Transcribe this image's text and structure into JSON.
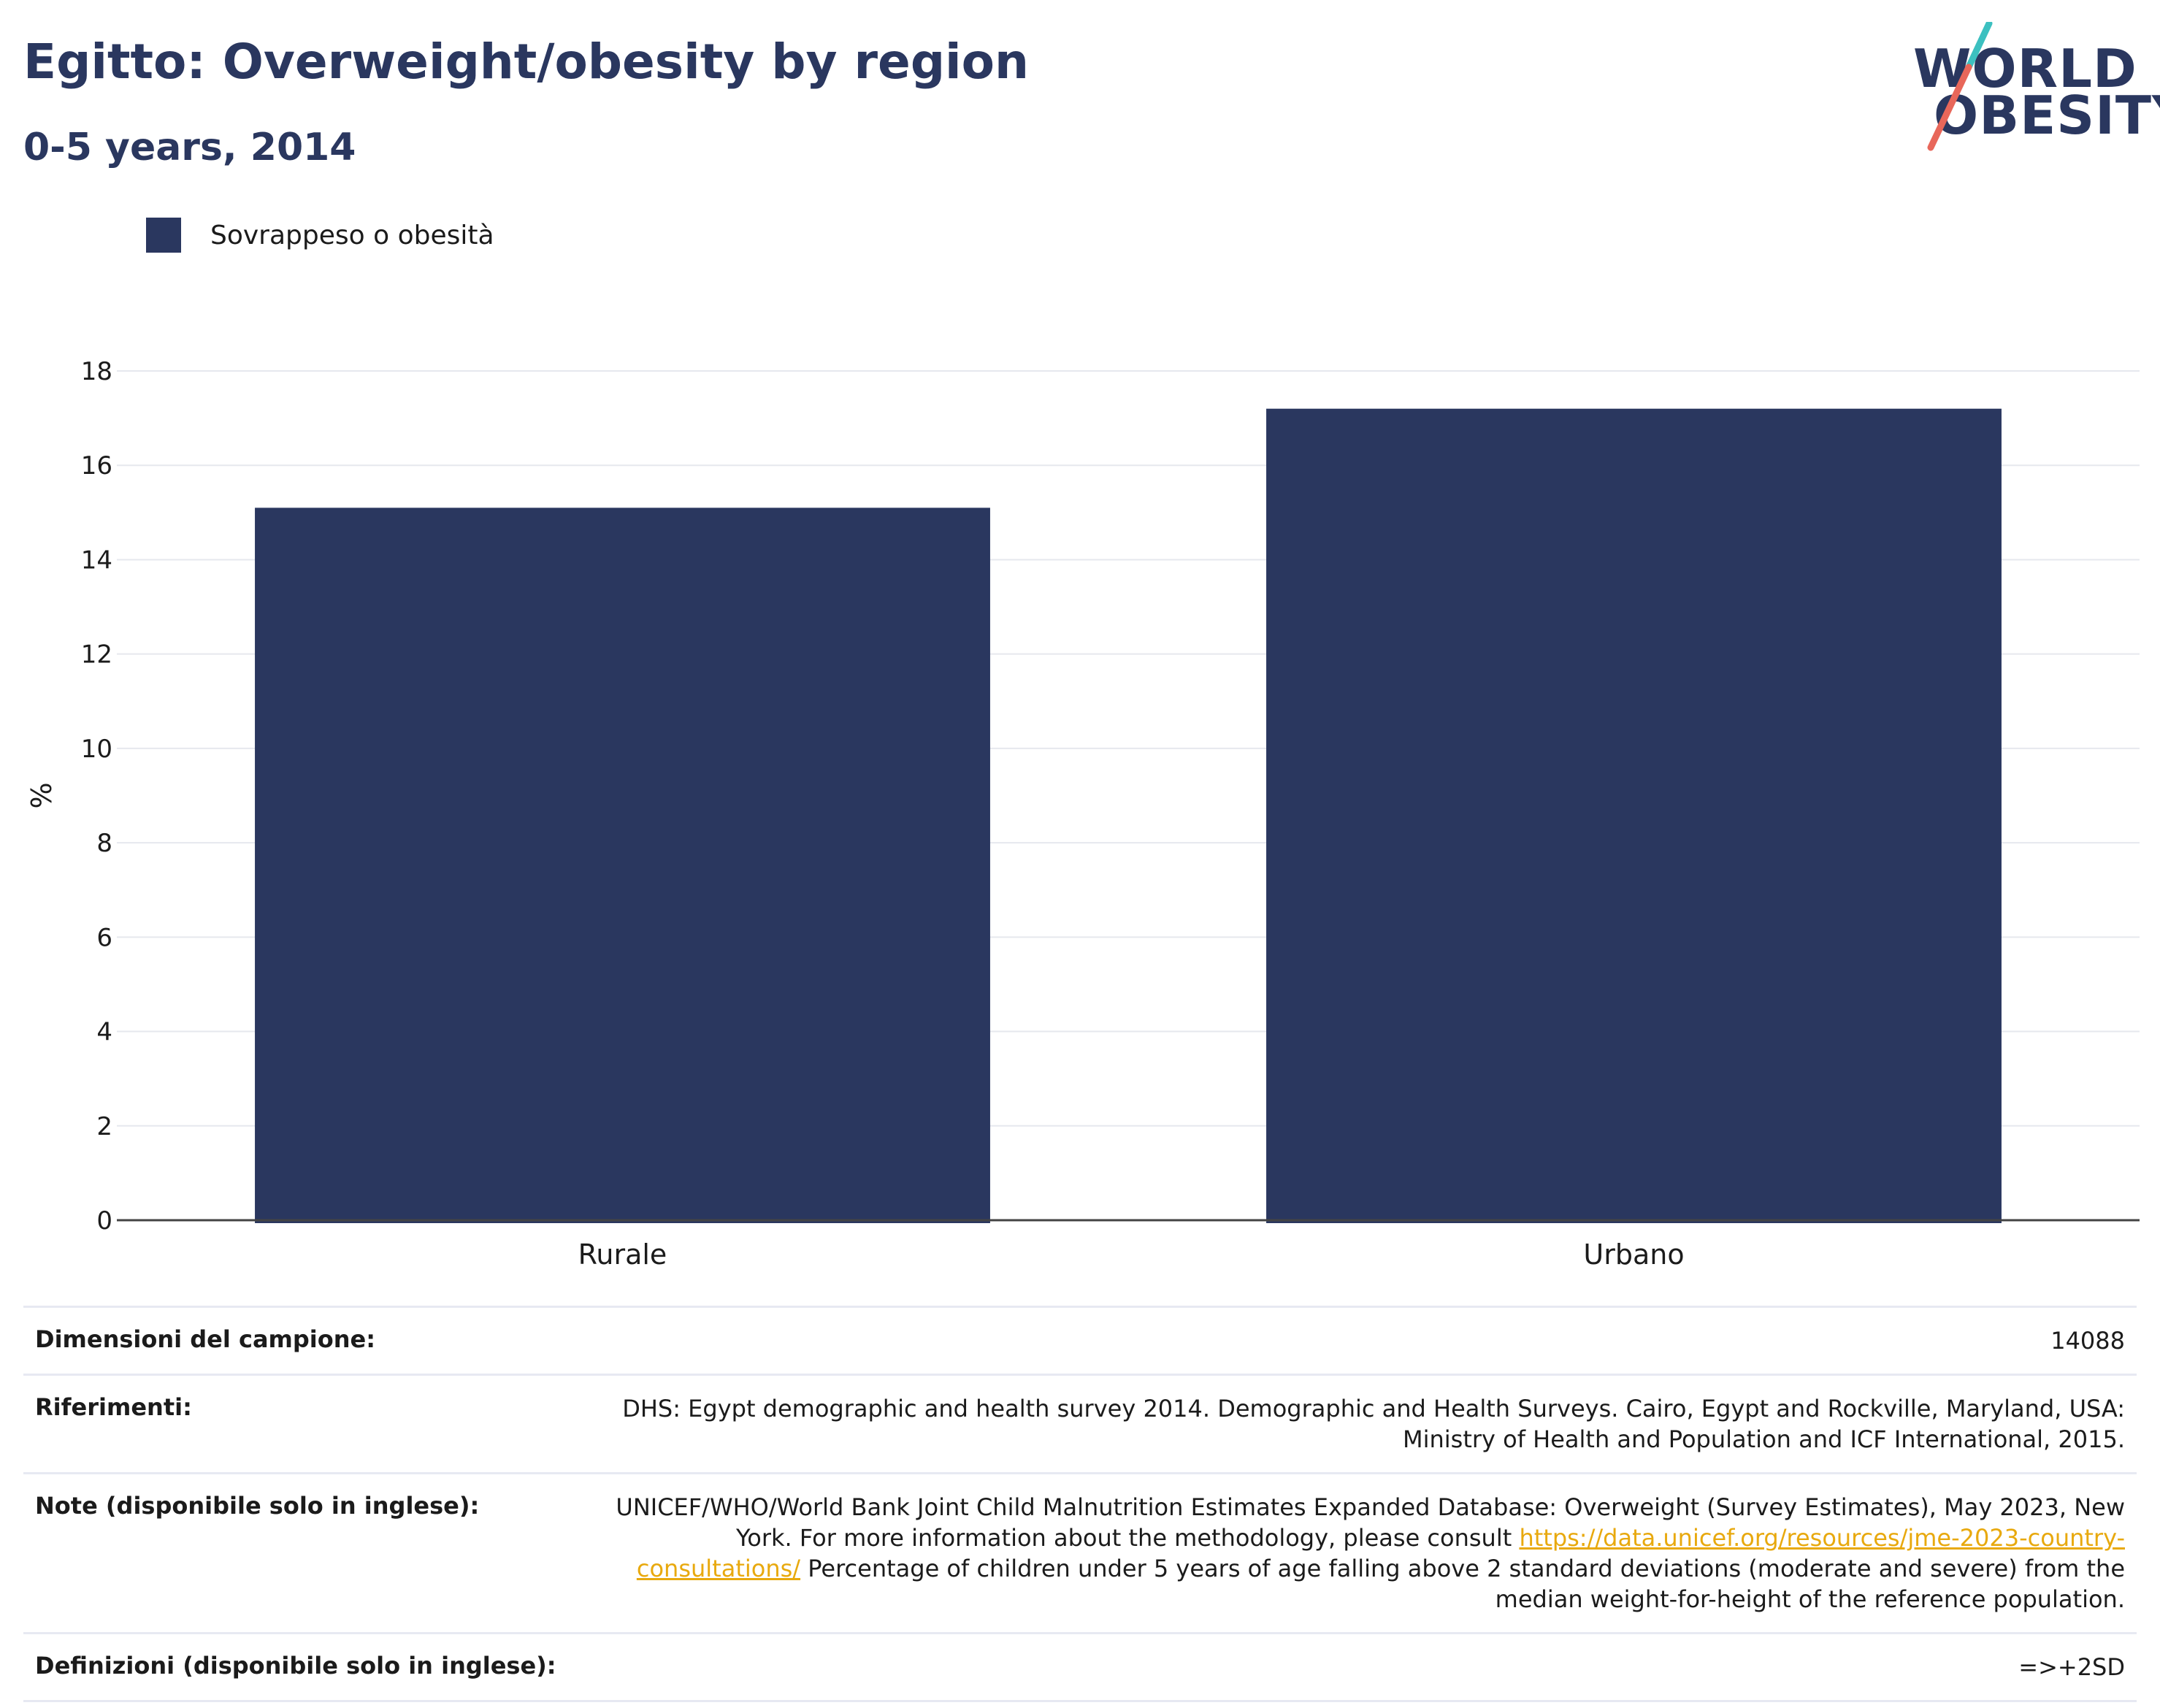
{
  "header": {
    "title": "Egitto: Overweight/obesity by region",
    "subtitle": "0-5 years, 2014"
  },
  "logo": {
    "line1": "WORLD",
    "line2": "OBESITY",
    "colors": {
      "text": "#2a375f",
      "slash_top": "#3cc0c0",
      "slash_bottom": "#e8675a"
    }
  },
  "legend": {
    "label": "Sovrappeso o obesità",
    "color": "#2a375f"
  },
  "chart_data": {
    "type": "bar",
    "categories": [
      "Rurale",
      "Urbano"
    ],
    "series": [
      {
        "name": "Sovrappeso o obesità",
        "values": [
          15.1,
          17.2
        ],
        "color": "#2a375f"
      }
    ],
    "ylabel": "%",
    "xlabel": "",
    "ylim": [
      0,
      18
    ],
    "yticks": [
      0,
      2,
      4,
      6,
      8,
      10,
      12,
      14,
      16,
      18
    ],
    "grid": true,
    "legend_position": "top-left"
  },
  "meta": {
    "sample_size": {
      "label": "Dimensioni del campione:",
      "value": "14088"
    },
    "references": {
      "label": "Riferimenti:",
      "value": "DHS: Egypt demographic and health survey 2014. Demographic and Health Surveys. Cairo, Egypt and Rockville, Maryland, USA: Ministry of Health and Population and ICF International, 2015."
    },
    "notes": {
      "label": "Note (disponibile solo in inglese):",
      "text_before": "UNICEF/WHO/World Bank Joint Child Malnutrition Estimates Expanded Database: Overweight (Survey Estimates), May 2023, New York. For more information about the methodology, please consult ",
      "link": "https://data.unicef.org/resources/jme-2023-country-consultations/",
      "text_after": " Percentage of children under 5 years of age falling above 2 standard deviations (moderate and severe) from the median weight-for-height of the reference population."
    },
    "definitions": {
      "label": "Definizioni (disponibile solo in inglese):",
      "value": "=>+2SD"
    }
  }
}
